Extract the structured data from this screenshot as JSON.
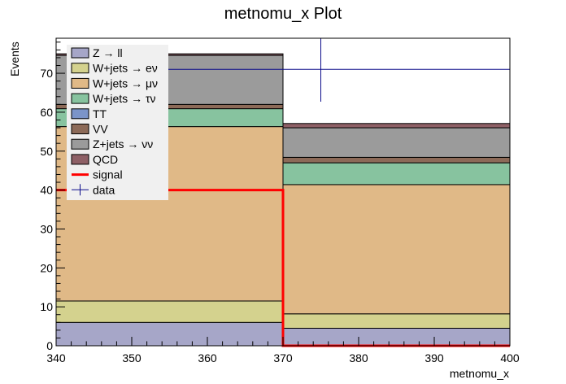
{
  "chart_data": {
    "type": "bar",
    "title": "metnomu_x Plot",
    "xlabel": "metnomu_x",
    "ylabel": "Events",
    "xlim": [
      340,
      400
    ],
    "ylim": [
      0,
      79
    ],
    "xticks": [
      340,
      350,
      360,
      370,
      380,
      390,
      400
    ],
    "yticks": [
      0,
      10,
      20,
      30,
      40,
      50,
      60,
      70
    ],
    "bin_edges": [
      340,
      370,
      400
    ],
    "stack": [
      {
        "name": "Z → ll",
        "color": "#a6a6c8",
        "values": [
          6.0,
          4.5
        ]
      },
      {
        "name": "W+jets → eν",
        "color": "#d4d28e",
        "values": [
          5.5,
          3.7
        ]
      },
      {
        "name": "W+jets → μν",
        "color": "#e0b987",
        "values": [
          44.8,
          33.2
        ]
      },
      {
        "name": "W+jets → τν",
        "color": "#87c39f",
        "values": [
          4.6,
          5.6
        ]
      },
      {
        "name": "TT",
        "color": "#7b94c9",
        "values": [
          0.0,
          0.0
        ]
      },
      {
        "name": "VV",
        "color": "#8c6a58",
        "values": [
          1.1,
          1.4
        ]
      },
      {
        "name": "Z+jets → νν",
        "color": "#9b9b9b",
        "values": [
          12.6,
          7.6
        ]
      },
      {
        "name": "QCD",
        "color": "#8e6066",
        "values": [
          0.4,
          1.1
        ]
      }
    ],
    "signal": {
      "name": "signal",
      "color": "#ff0000",
      "values": [
        40,
        0
      ]
    },
    "data": {
      "name": "data",
      "color": "#0b0b8a",
      "points": [
        {
          "x": 375,
          "y": 71,
          "xerr": 25,
          "yerr": 8.3
        }
      ]
    },
    "legend_position": "top-left"
  }
}
